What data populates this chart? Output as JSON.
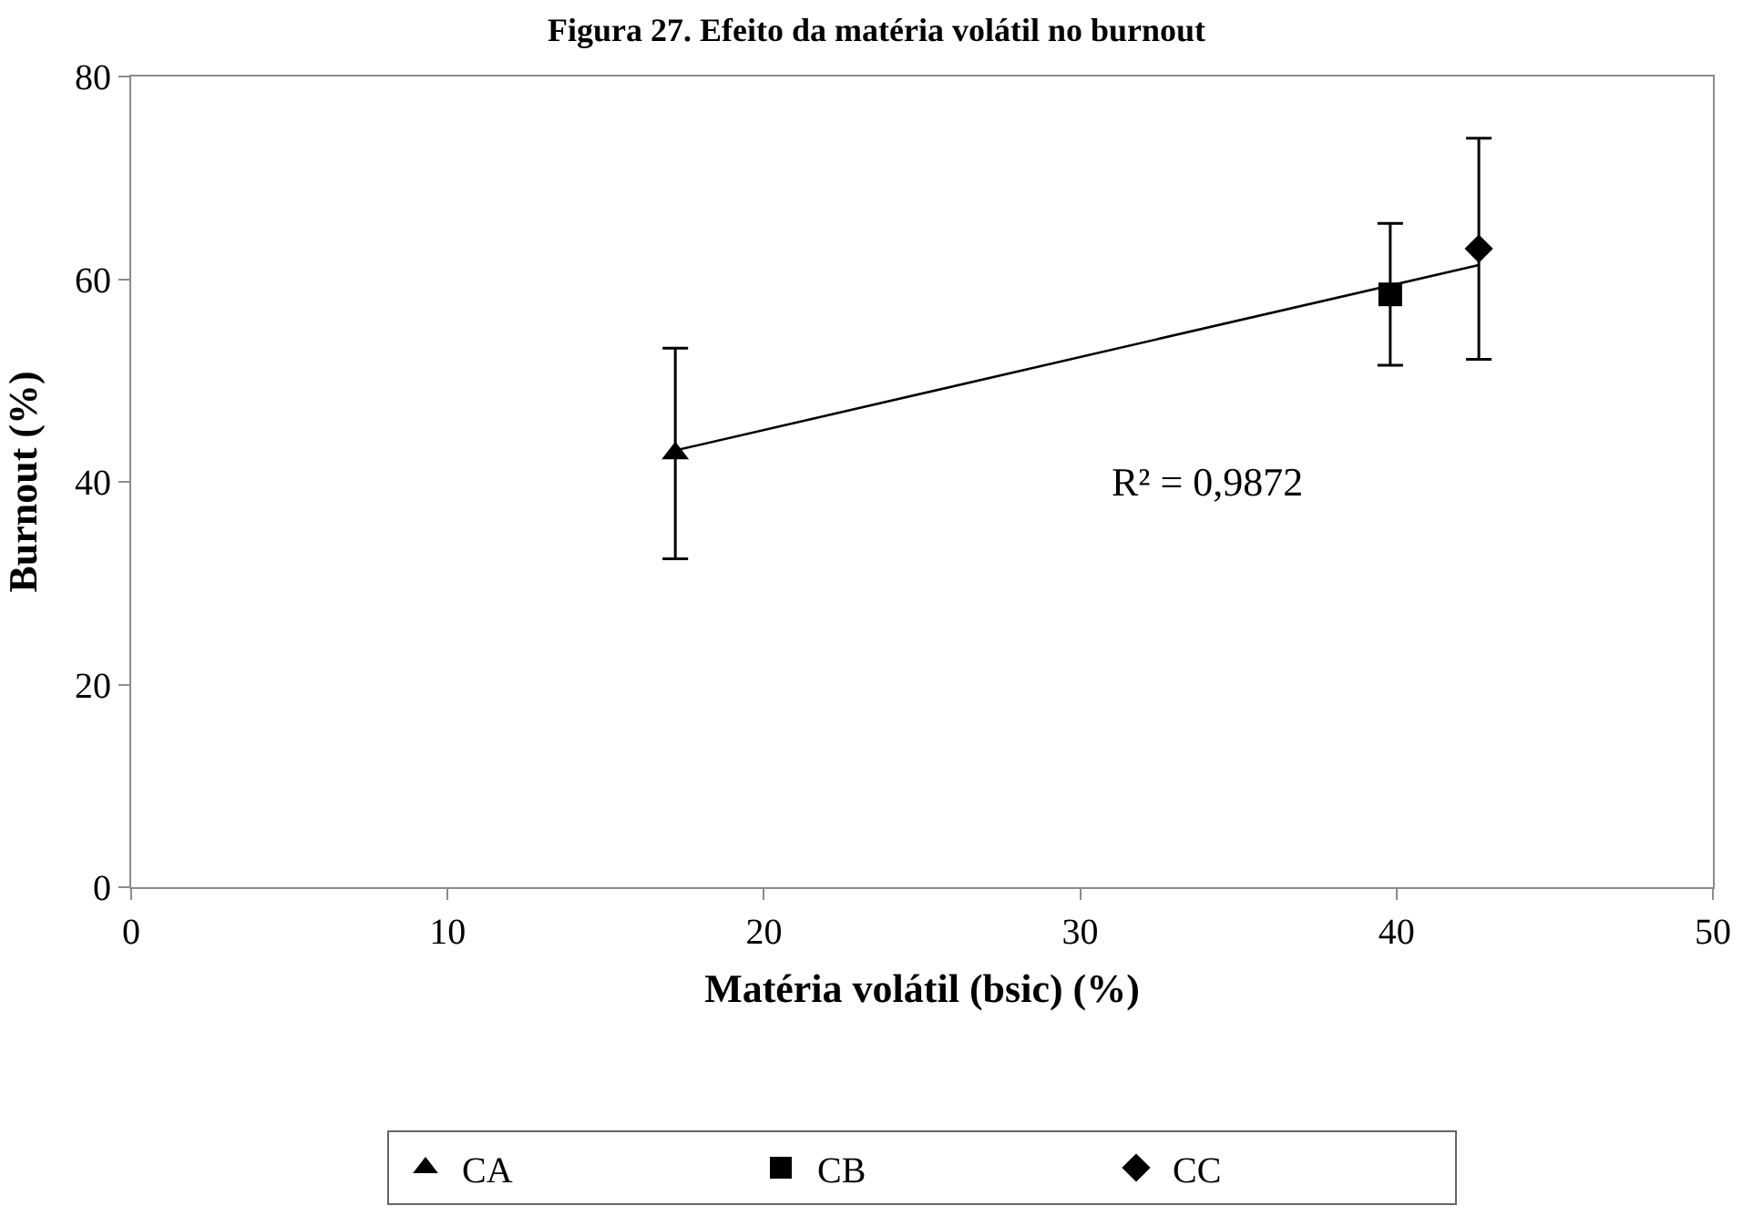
{
  "chart_data": {
    "type": "scatter",
    "title": "Figura 27. Efeito da matéria volátil no burnout",
    "xlabel": "Matéria volátil (bsic) (%)",
    "ylabel": "Burnout (%)",
    "xlim": [
      0,
      50
    ],
    "xticks": [
      0,
      10,
      20,
      30,
      40,
      50
    ],
    "ylim": [
      0,
      80
    ],
    "yticks": [
      0,
      20,
      40,
      60,
      80
    ],
    "legend": "bottom",
    "series": [
      {
        "name": "CA",
        "color": "#000000",
        "marker": "triangle",
        "x": [
          17.2
        ],
        "values": [
          42.8
        ],
        "errors": [
          10.4
        ]
      },
      {
        "name": "CB",
        "color": "#000000",
        "marker": "square",
        "x": [
          39.8
        ],
        "values": [
          58.5
        ],
        "errors": [
          7
        ]
      },
      {
        "name": "CC",
        "color": "#000000",
        "marker": "diamond",
        "x": [
          42.6
        ],
        "values": [
          63.0
        ],
        "errors": [
          10.9
        ]
      },
      {
        "type": "line",
        "color": "#000000",
        "marker": "none",
        "line_style": "solid",
        "x": [
          17.2,
          42.6
        ],
        "values": [
          43.1,
          61.4
        ]
      }
    ],
    "annotations": [
      "R² = 0,9872"
    ]
  }
}
